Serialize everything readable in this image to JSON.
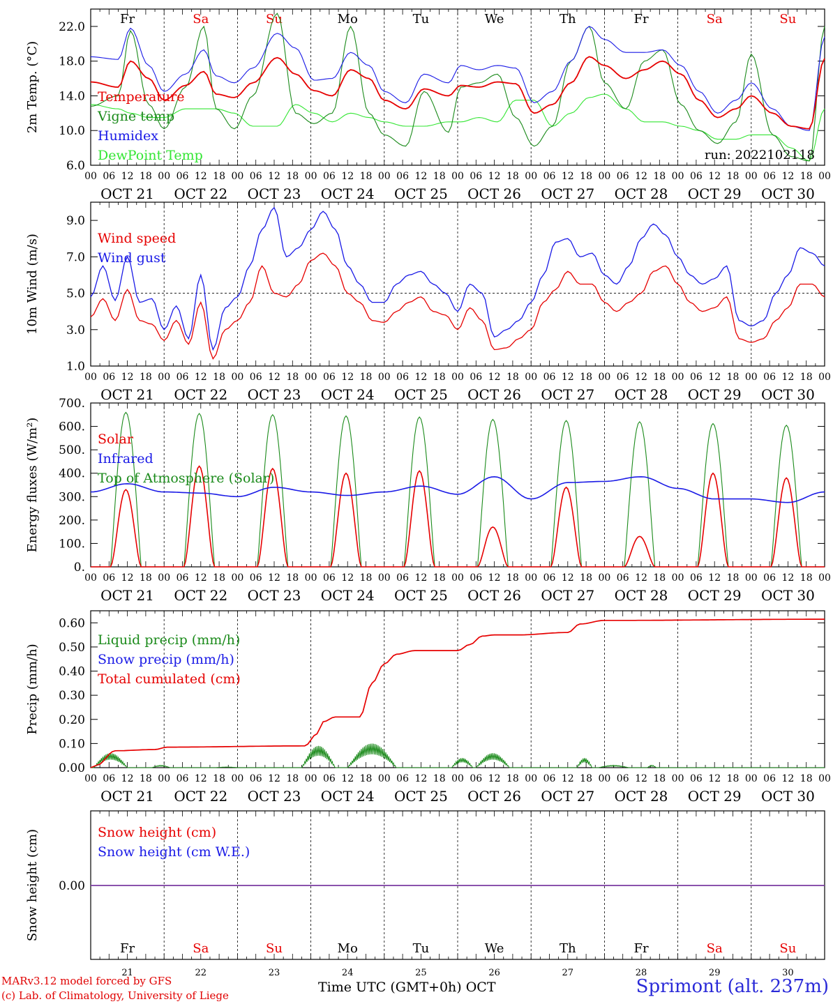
{
  "colors": {
    "red": "#e60000",
    "darkgreen": "#1a8a1a",
    "blue": "#1a1ae6",
    "lightgreen": "#33e633",
    "purple": "#7a3aa0",
    "weekend": "#e60000",
    "weekday": "#000000"
  },
  "days": [
    {
      "abbr": "Fr",
      "num": "21",
      "label": "OCT 21",
      "weekend": false
    },
    {
      "abbr": "Sa",
      "num": "22",
      "label": "OCT 22",
      "weekend": true
    },
    {
      "abbr": "Su",
      "num": "23",
      "label": "OCT 23",
      "weekend": true
    },
    {
      "abbr": "Mo",
      "num": "24",
      "label": "OCT 24",
      "weekend": false
    },
    {
      "abbr": "Tu",
      "num": "25",
      "label": "OCT 25",
      "weekend": false
    },
    {
      "abbr": "We",
      "num": "26",
      "label": "OCT 26",
      "weekend": false
    },
    {
      "abbr": "Th",
      "num": "27",
      "label": "OCT 27",
      "weekend": false
    },
    {
      "abbr": "Fr",
      "num": "28",
      "label": "OCT 28",
      "weekend": false
    },
    {
      "abbr": "Sa",
      "num": "29",
      "label": "OCT 29",
      "weekend": true
    },
    {
      "abbr": "Su",
      "num": "30",
      "label": "OCT 30",
      "weekend": true
    }
  ],
  "hour_ticks": [
    "00",
    "06",
    "12",
    "18"
  ],
  "chart_data": [
    {
      "type": "line",
      "id": "temp",
      "ylabel": "2m Temp. (°C)",
      "ylim": [
        6.0,
        24.0
      ],
      "yticks": [
        "6.0",
        "10.0",
        "14.0",
        "18.0",
        "22.0"
      ],
      "ytick_values": [
        6,
        10,
        14,
        18,
        22
      ],
      "annotation": "run: 2022102118",
      "x_hours": [
        0,
        9,
        13,
        19,
        24,
        31,
        37,
        41,
        47,
        53,
        61,
        67,
        73,
        79,
        85,
        91,
        96,
        103,
        109,
        117,
        121,
        127,
        133,
        139,
        145,
        151,
        157,
        163,
        168,
        175,
        181,
        187,
        193,
        199,
        205,
        211,
        216,
        223,
        229,
        235,
        240
      ],
      "series": [
        {
          "name": "Temperature",
          "color": "#e60000",
          "y": [
            15.6,
            15.0,
            18.0,
            16.0,
            13.5,
            15.2,
            16.8,
            14.2,
            13.8,
            15.5,
            18.4,
            16.5,
            14.6,
            14.0,
            17.0,
            16.0,
            13.5,
            12.5,
            14.8,
            14.0,
            15.2,
            15.0,
            15.6,
            15.4,
            12.0,
            13.0,
            15.5,
            18.5,
            17.5,
            16.0,
            17.0,
            18.0,
            16.5,
            13.5,
            11.5,
            12.5,
            14.0,
            12.0,
            10.5,
            10.2,
            18.3
          ]
        },
        {
          "name": "Vigne temp",
          "color": "#1a8a1a",
          "y": [
            12.8,
            14.0,
            21.5,
            13.0,
            10.2,
            15.0,
            22.0,
            12.5,
            10.2,
            14.0,
            23.5,
            12.0,
            10.8,
            12.0,
            22.0,
            12.0,
            9.5,
            8.2,
            14.5,
            9.8,
            15.0,
            15.5,
            16.5,
            11.5,
            8.2,
            10.5,
            18.0,
            22.0,
            15.5,
            12.5,
            18.0,
            19.3,
            13.0,
            10.0,
            8.5,
            11.0,
            18.8,
            9.5,
            7.0,
            6.5,
            22.0
          ]
        },
        {
          "name": "Humidex",
          "color": "#1a1ae6",
          "y": [
            18.5,
            18.2,
            21.8,
            17.5,
            14.5,
            16.5,
            19.3,
            16.3,
            15.5,
            17.2,
            21.2,
            19.5,
            15.8,
            16.0,
            19.0,
            17.5,
            14.5,
            13.2,
            16.5,
            15.5,
            17.5,
            17.0,
            17.5,
            17.2,
            13.2,
            14.5,
            18.0,
            22.0,
            20.5,
            19.0,
            19.0,
            19.3,
            17.5,
            14.5,
            12.0,
            13.5,
            15.5,
            12.5,
            10.5,
            10.0,
            20.8
          ]
        },
        {
          "name": "DewPoint Temp",
          "color": "#33e633",
          "y": [
            13.0,
            12.5,
            12.0,
            11.5,
            11.5,
            12.5,
            12.5,
            12.5,
            12.0,
            10.5,
            10.5,
            13.0,
            12.0,
            11.0,
            12.0,
            11.5,
            11.0,
            10.5,
            10.5,
            11.0,
            11.0,
            11.5,
            11.0,
            13.5,
            13.5,
            10.5,
            12.0,
            13.8,
            14.2,
            12.5,
            11.0,
            11.0,
            10.5,
            10.0,
            9.0,
            9.0,
            9.5,
            9.5,
            8.0,
            6.5,
            12.5
          ]
        }
      ]
    },
    {
      "type": "line",
      "id": "wind",
      "ylabel": "10m Wind (m/s)",
      "ylim": [
        1.0,
        10.0
      ],
      "yticks": [
        "1.0",
        "3.0",
        "5.0",
        "7.0",
        "9.0"
      ],
      "ytick_values": [
        1,
        3,
        5,
        7,
        9
      ],
      "reference_line": 5.0,
      "x_hours": [
        0,
        4,
        8,
        12,
        16,
        20,
        24,
        28,
        32,
        36,
        40,
        44,
        48,
        52,
        56,
        60,
        64,
        68,
        72,
        76,
        80,
        84,
        88,
        92,
        96,
        100,
        104,
        108,
        112,
        116,
        120,
        124,
        128,
        132,
        136,
        140,
        144,
        148,
        152,
        156,
        160,
        164,
        168,
        172,
        176,
        180,
        184,
        188,
        192,
        196,
        200,
        204,
        208,
        212,
        216,
        220,
        224,
        228,
        232,
        236,
        240
      ],
      "series": [
        {
          "name": "Wind speed",
          "color": "#e60000",
          "y": [
            3.7,
            4.7,
            3.5,
            5.2,
            3.5,
            3.3,
            2.4,
            3.5,
            2.2,
            4.5,
            1.4,
            3.0,
            3.5,
            4.5,
            6.5,
            5.0,
            4.8,
            5.5,
            6.8,
            7.2,
            6.5,
            5.0,
            4.5,
            3.5,
            3.4,
            4.0,
            4.5,
            4.8,
            4.0,
            3.8,
            3.0,
            4.2,
            3.5,
            1.9,
            2.0,
            2.5,
            3.0,
            4.5,
            5.2,
            6.2,
            5.5,
            5.5,
            4.5,
            4.0,
            4.5,
            5.0,
            6.2,
            6.5,
            5.5,
            4.5,
            4.0,
            4.2,
            4.8,
            2.5,
            2.3,
            2.5,
            3.5,
            4.2,
            5.5,
            5.5,
            4.8
          ]
        },
        {
          "name": "Wind gust",
          "color": "#1a1ae6",
          "y": [
            4.8,
            6.5,
            4.6,
            7.0,
            4.5,
            4.7,
            3.0,
            4.3,
            2.5,
            6.0,
            1.9,
            4.2,
            4.8,
            6.5,
            8.5,
            9.7,
            7.0,
            7.5,
            8.5,
            9.5,
            8.5,
            6.5,
            5.5,
            4.5,
            4.5,
            5.5,
            6.0,
            6.2,
            5.5,
            5.0,
            4.0,
            5.5,
            5.0,
            2.6,
            3.0,
            3.5,
            4.5,
            6.0,
            7.8,
            8.0,
            7.0,
            7.2,
            6.0,
            5.5,
            6.5,
            8.0,
            8.8,
            8.2,
            7.0,
            6.0,
            5.5,
            5.8,
            6.5,
            3.5,
            3.2,
            3.5,
            5.0,
            6.0,
            7.5,
            7.2,
            6.5
          ]
        }
      ]
    },
    {
      "type": "line",
      "id": "flux",
      "ylabel": "Energy fluxes (W/m²)",
      "ylim": [
        0,
        700
      ],
      "yticks": [
        "0.",
        "100.",
        "200.",
        "300.",
        "400.",
        "500.",
        "600.",
        "700."
      ],
      "ytick_values": [
        0,
        100,
        200,
        300,
        400,
        500,
        600,
        700
      ],
      "daylight": {
        "sunrise_hour": 6.5,
        "sunset_hour": 16.5
      },
      "series": [
        {
          "name": "Solar",
          "color": "#e60000",
          "daily_peak": [
            330,
            430,
            420,
            400,
            410,
            170,
            340,
            130,
            400,
            380
          ]
        },
        {
          "name": "Infrared",
          "color": "#1a1ae6",
          "x_hours": [
            0,
            12,
            24,
            36,
            48,
            60,
            72,
            84,
            96,
            108,
            120,
            132,
            144,
            156,
            168,
            180,
            192,
            204,
            216,
            228,
            240
          ],
          "y": [
            320,
            355,
            320,
            315,
            300,
            340,
            320,
            305,
            320,
            345,
            310,
            385,
            290,
            360,
            365,
            385,
            335,
            290,
            290,
            275,
            320
          ]
        },
        {
          "name": "Top of Atmosphere (Solar)",
          "color": "#1a8a1a",
          "daily_peak": [
            660,
            655,
            650,
            645,
            640,
            630,
            625,
            620,
            612,
            605
          ]
        }
      ]
    },
    {
      "type": "line",
      "id": "precip",
      "ylabel": "Precip (mm/h)",
      "ylim": [
        0.0,
        0.65
      ],
      "yticks": [
        "0.00",
        "0.10",
        "0.20",
        "0.30",
        "0.40",
        "0.50",
        "0.60"
      ],
      "ytick_values": [
        0.0,
        0.1,
        0.2,
        0.3,
        0.4,
        0.5,
        0.6
      ],
      "series": [
        {
          "name": "Liquid precip (mm/h)",
          "color": "#1a8a1a",
          "bursts": [
            [
              1,
              12,
              0.06
            ],
            [
              20,
              26,
              0.01
            ],
            [
              41,
              48,
              0.003
            ],
            [
              69,
              80,
              0.09
            ],
            [
              84,
              100,
              0.1
            ],
            [
              118,
              125,
              0.04
            ],
            [
              126,
              137,
              0.06
            ],
            [
              159,
              164,
              0.04
            ],
            [
              166,
              176,
              0.01
            ],
            [
              182,
              185,
              0.01
            ]
          ]
        },
        {
          "name": "Snow precip (mm/h)",
          "color": "#1a1ae6",
          "y": [
            0
          ]
        },
        {
          "name": "Total cumulated (cm)",
          "color": "#e60000",
          "x_hours": [
            0,
            2,
            8,
            21,
            25,
            70,
            74,
            76,
            80,
            83,
            88,
            92,
            96,
            100,
            106,
            120,
            124,
            128,
            132,
            140,
            156,
            160,
            168,
            240
          ],
          "y": [
            0.0,
            0.01,
            0.07,
            0.075,
            0.085,
            0.09,
            0.14,
            0.19,
            0.21,
            0.21,
            0.21,
            0.35,
            0.43,
            0.47,
            0.485,
            0.485,
            0.51,
            0.545,
            0.55,
            0.55,
            0.56,
            0.595,
            0.61,
            0.615
          ]
        }
      ]
    },
    {
      "type": "line",
      "id": "snow",
      "ylabel": "Snow height (cm)",
      "yticks": [
        "0.00"
      ],
      "ytick_values": [
        0.0
      ],
      "series": [
        {
          "name": "Snow height (cm)",
          "color": "#e60000",
          "y": [
            0.0
          ]
        },
        {
          "name": "Snow height (cm W.E.)",
          "color": "#1a1ae6",
          "y": [
            0.0
          ]
        }
      ]
    }
  ],
  "footer": {
    "credit_line1": "MARv3.12 model forced by GFS",
    "credit_line2": "(c) Lab. of Climatology, University of Liege",
    "xtitle": "Time UTC (GMT+0h) OCT",
    "station": "Sprimont (alt. 237m)"
  }
}
